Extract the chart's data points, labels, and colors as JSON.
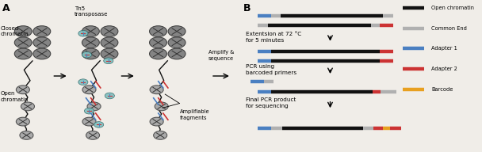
{
  "fig_width": 6.08,
  "fig_height": 1.92,
  "dpi": 100,
  "background": "#f0ede8",
  "colors": {
    "open_chromatin": "#111111",
    "common_end": "#b0b0b0",
    "adapter1": "#4a7fc1",
    "adapter2": "#cc3333",
    "barcode": "#e8a020",
    "nuc_closed": "#808080",
    "nuc_open": "#aaaaaa",
    "nuc_outline": "#555555",
    "tn5_body": "#888888",
    "tn5_color": "#7fbfbf",
    "dna_line": "#111111",
    "arrow_color": "#222222"
  },
  "legend_labels": [
    "Open chromatin",
    "Common End",
    "Adapter 1",
    "Adapter 2",
    "Barcode"
  ],
  "legend_colors": [
    "#111111",
    "#b0b0b0",
    "#4a7fc1",
    "#cc3333",
    "#e8a020"
  ],
  "steps": [
    "Extentsion at 72 °C\nfor 5 minutes",
    "PCR using\nbarcoded primers",
    "Final PCR product\nfor sequencing"
  ],
  "panel_labels": [
    "A",
    "B"
  ]
}
